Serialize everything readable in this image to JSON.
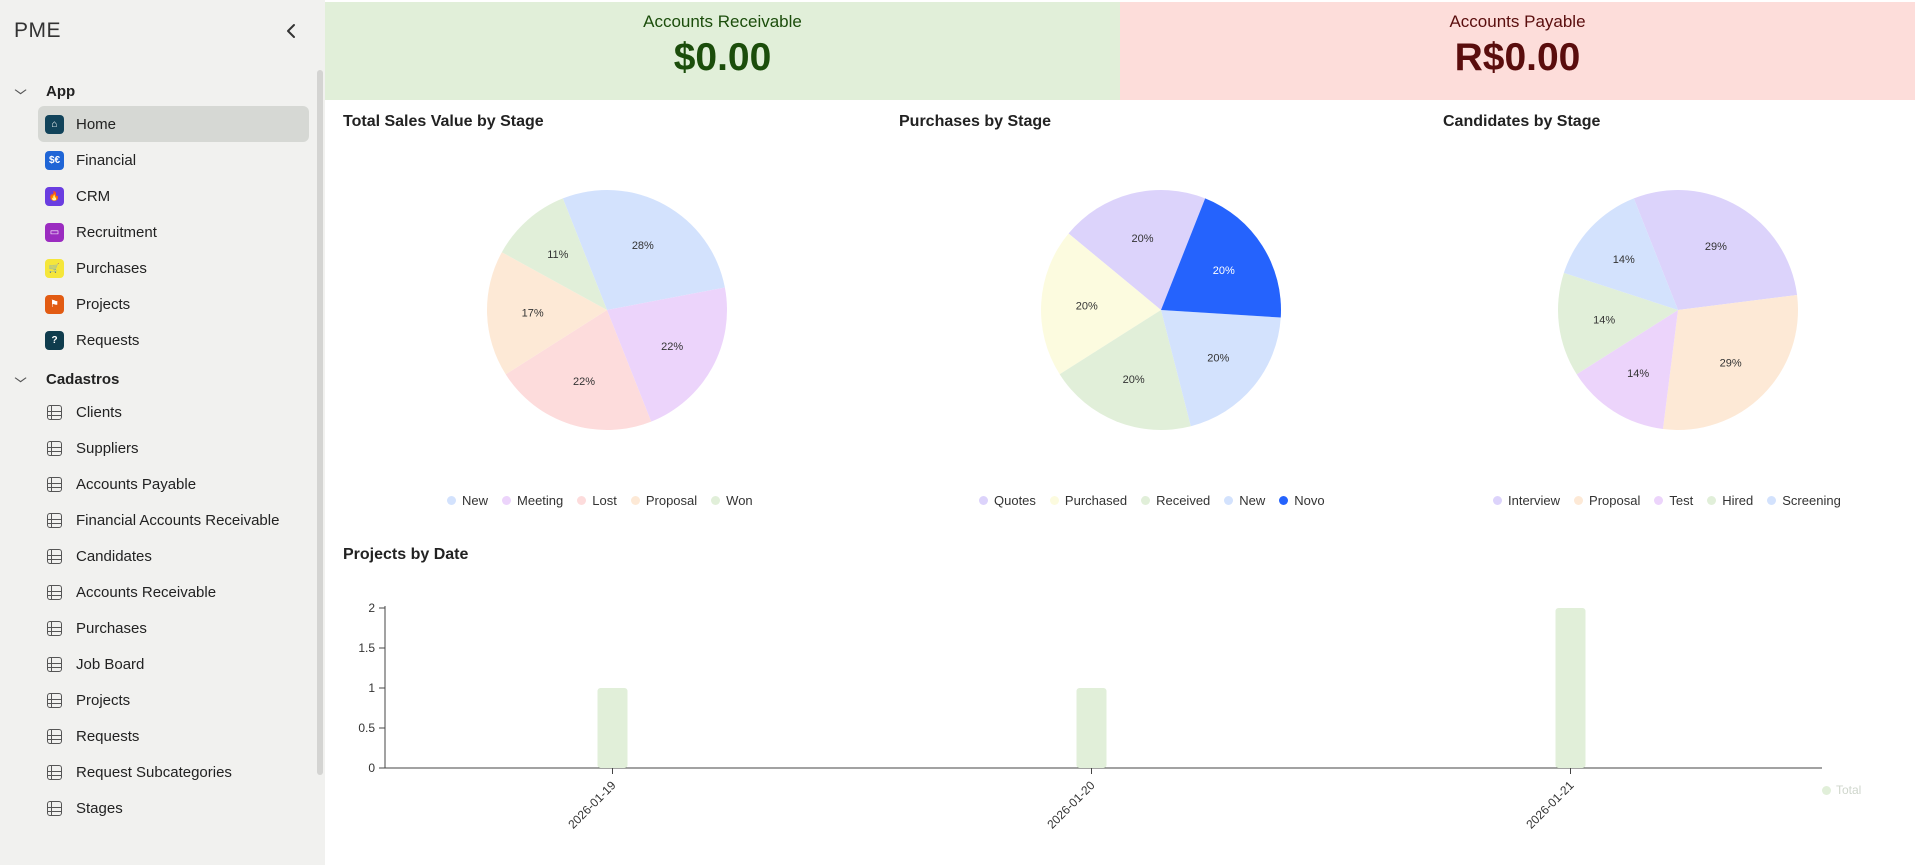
{
  "app": {
    "title": "PME"
  },
  "sidebar": {
    "sections": [
      {
        "label": "App",
        "items": [
          {
            "label": "Home",
            "icon": "home-icon",
            "color": "#11435a",
            "glyph": "⌂",
            "active": true
          },
          {
            "label": "Financial",
            "icon": "money-icon",
            "color": "#1f65d6",
            "glyph": "$€"
          },
          {
            "label": "CRM",
            "icon": "flame-icon",
            "color": "#6a3de0",
            "glyph": "🔥"
          },
          {
            "label": "Recruitment",
            "icon": "folder-icon",
            "color": "#9b2cc0",
            "glyph": "▭"
          },
          {
            "label": "Purchases",
            "icon": "cart-icon",
            "color": "#f5e63a",
            "glyph": "🛒"
          },
          {
            "label": "Projects",
            "icon": "project-icon",
            "color": "#e25b12",
            "glyph": "⚑"
          },
          {
            "label": "Requests",
            "icon": "chat-question-icon",
            "color": "#0f3c4d",
            "glyph": "?"
          }
        ]
      },
      {
        "label": "Cadastros",
        "items": [
          {
            "label": "Clients",
            "icon": "table-icon"
          },
          {
            "label": "Suppliers",
            "icon": "table-icon"
          },
          {
            "label": "Accounts Payable",
            "icon": "table-icon"
          },
          {
            "label": "Financial Accounts Receivable",
            "icon": "table-icon"
          },
          {
            "label": "Candidates",
            "icon": "table-icon"
          },
          {
            "label": "Accounts Receivable",
            "icon": "table-icon"
          },
          {
            "label": "Purchases",
            "icon": "table-icon"
          },
          {
            "label": "Job Board",
            "icon": "table-icon"
          },
          {
            "label": "Projects",
            "icon": "table-icon"
          },
          {
            "label": "Requests",
            "icon": "table-icon"
          },
          {
            "label": "Request Subcategories",
            "icon": "table-icon"
          },
          {
            "label": "Stages",
            "icon": "table-icon"
          }
        ]
      }
    ]
  },
  "kpis": {
    "receivable": {
      "label": "Accounts Receivable",
      "value": "$0.00",
      "bg": "#e1efd9"
    },
    "payable": {
      "label": "Accounts Payable",
      "value": "R$0.00",
      "bg": "#fdddda"
    }
  },
  "chart_data": [
    {
      "type": "pie",
      "title": "Total Sales Value by Stage",
      "categories": [
        "New",
        "Meeting",
        "Lost",
        "Proposal",
        "Won"
      ],
      "values": [
        28,
        22,
        22,
        17,
        11
      ],
      "colors": [
        "#d3e2fd",
        "#ecd4fb",
        "#fddcdc",
        "#fde9d6",
        "#e1efd9"
      ],
      "labels": [
        "28%",
        "22%",
        "22%",
        "17%",
        "11%"
      ],
      "legend_position": "bottom"
    },
    {
      "type": "pie",
      "title": "Purchases by Stage",
      "categories": [
        "Quotes",
        "Purchased",
        "Received",
        "New",
        "Novo"
      ],
      "values": [
        20,
        20,
        20,
        20,
        20
      ],
      "colors": [
        "#dcd3fb",
        "#fcfbdf",
        "#e1efd9",
        "#d3e2fd",
        "#2563fd"
      ],
      "labels": [
        "20%",
        "20%",
        "20%",
        "20%",
        "20%"
      ],
      "legend_position": "bottom"
    },
    {
      "type": "pie",
      "title": "Candidates by Stage",
      "categories": [
        "Interview",
        "Proposal",
        "Test",
        "Hired",
        "Screening"
      ],
      "values": [
        29,
        29,
        14,
        14,
        14
      ],
      "colors": [
        "#dcd3fb",
        "#fde9d6",
        "#ecd4fb",
        "#e1efd9",
        "#d3e2fd"
      ],
      "labels": [
        "29%",
        "29%",
        "14%",
        "14%",
        "14%"
      ],
      "legend_position": "bottom"
    },
    {
      "type": "bar",
      "title": "Projects by Date",
      "categories": [
        "2026-01-19",
        "2026-01-20",
        "2026-01-21"
      ],
      "series": [
        {
          "name": "Total",
          "values": [
            1,
            1,
            2
          ],
          "color": "#e1efd9"
        }
      ],
      "yticks": [
        "0",
        "0.5",
        "1",
        "1.5",
        "2"
      ],
      "ylim": [
        0,
        2
      ],
      "legend_position": "bottom-right"
    }
  ]
}
